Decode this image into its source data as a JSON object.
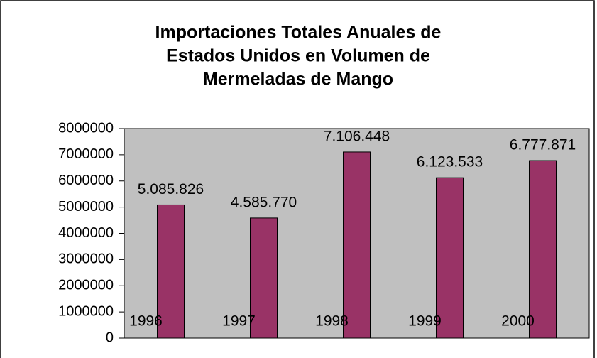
{
  "chart_data": {
    "type": "bar",
    "title": [
      "Importaciones Totales Anuales de",
      "Estados Unidos en Volumen de",
      "Mermeladas de Mango"
    ],
    "categories": [
      "1996",
      "1997",
      "1998",
      "1999",
      "2000"
    ],
    "values": [
      5085826,
      4585770,
      7106448,
      6123533,
      6777871
    ],
    "value_labels": [
      "5.085.826",
      "4.585.770",
      "7.106.448",
      "6.123.533",
      "6.777.871"
    ],
    "color": "#993366",
    "ylim": [
      0,
      8000000
    ],
    "yticks": [
      0,
      1000000,
      2000000,
      3000000,
      4000000,
      5000000,
      6000000,
      7000000,
      8000000
    ],
    "grid": false
  }
}
